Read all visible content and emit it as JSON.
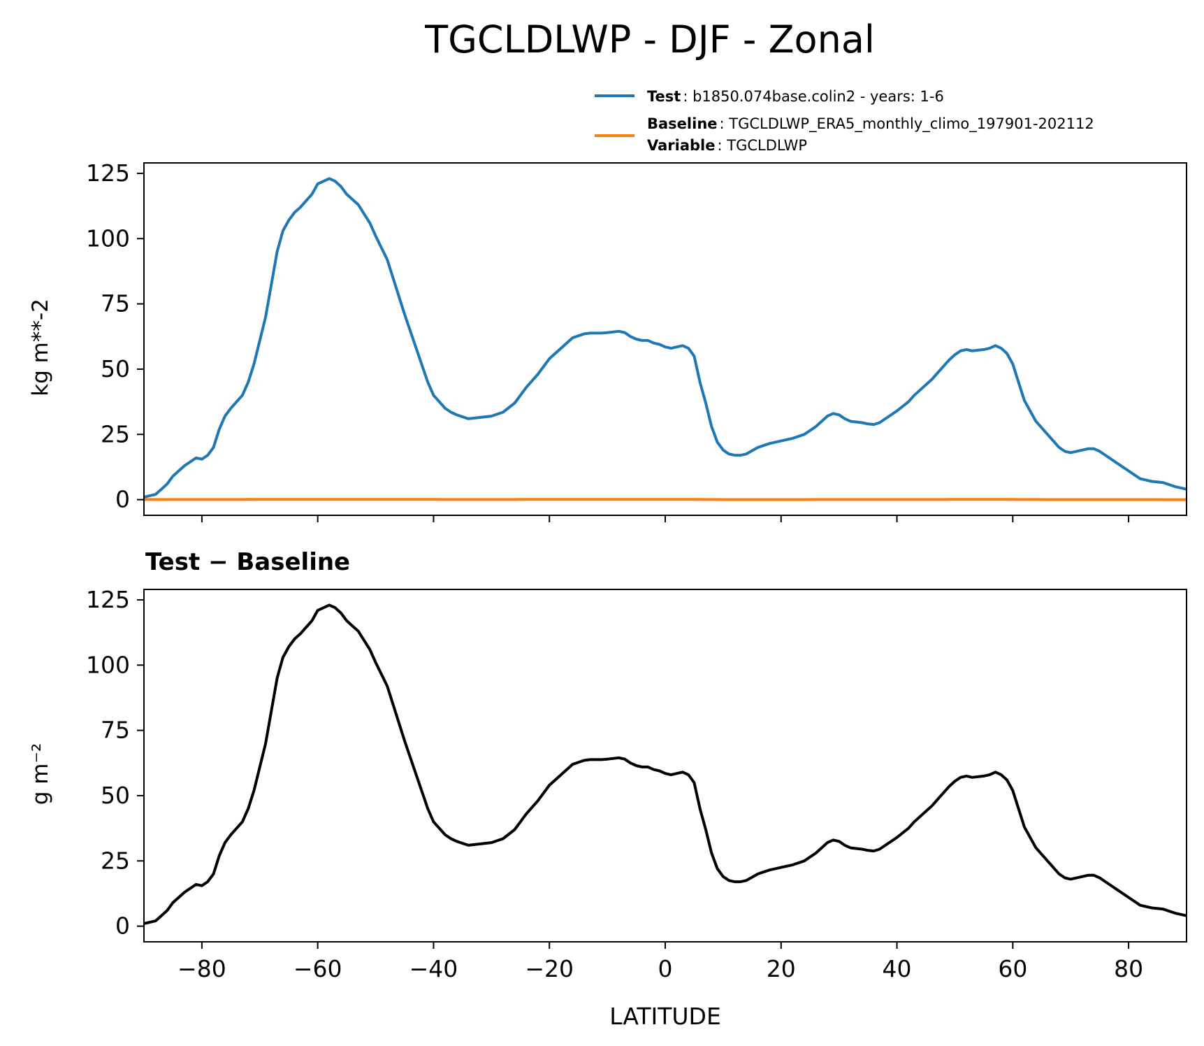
{
  "figure": {
    "title": "TGCLDLWP - DJF - Zonal",
    "colors": {
      "test": "#1f77b4",
      "baseline": "#ff7f0e",
      "difference": "#000000"
    }
  },
  "legend": {
    "test_key": "Test",
    "test_value": ": b1850.074base.colin2 - years: 1-6",
    "baseline_key": "Baseline",
    "baseline_value": ": TGCLDLWP_ERA5_monthly_climo_197901-202112",
    "variable_key": "Variable",
    "variable_value": ": TGCLDLWP"
  },
  "chart_data": [
    {
      "type": "line",
      "title": "",
      "xlabel": "",
      "ylabel": "kg m**-2",
      "xlim": [
        -90,
        90
      ],
      "ylim": [
        -6,
        129
      ],
      "xticks": [
        -80,
        -60,
        -40,
        -20,
        0,
        20,
        40,
        60,
        80
      ],
      "xtick_labels_visible": false,
      "yticks": [
        0,
        25,
        50,
        75,
        100,
        125
      ],
      "ytick_labels": [
        "0",
        "25",
        "50",
        "75",
        "100",
        "125"
      ],
      "grid": false,
      "legend": "top-right",
      "x": [
        -90,
        -88,
        -87,
        -86,
        -85,
        -83,
        -81,
        -80,
        -79,
        -78,
        -77,
        -76,
        -75,
        -73,
        -72,
        -71,
        -69,
        -67,
        -66,
        -65,
        -64,
        -63,
        -61,
        -60,
        -58,
        -57,
        -56,
        -55,
        -53,
        -51,
        -50,
        -48,
        -46,
        -45,
        -43,
        -41,
        -40,
        -38,
        -37,
        -36,
        -34,
        -32,
        -30,
        -28,
        -26,
        -25,
        -24,
        -22,
        -20,
        -18,
        -16,
        -14,
        -13,
        -11,
        -10,
        -8,
        -7,
        -6,
        -5,
        -4,
        -3,
        -2,
        -1,
        0,
        1,
        2,
        3,
        4,
        5,
        6,
        7,
        8,
        9,
        10,
        11,
        12,
        13,
        14,
        16,
        18,
        20,
        22,
        24,
        26,
        27,
        28,
        29,
        30,
        31,
        32,
        34,
        35,
        36,
        37,
        38,
        40,
        42,
        43,
        44,
        45,
        46,
        47,
        48,
        49,
        50,
        51,
        52,
        53,
        55,
        56,
        57,
        58,
        59,
        60,
        61,
        62,
        64,
        66,
        68,
        69,
        70,
        72,
        73,
        74,
        75,
        76,
        78,
        80,
        82,
        84,
        86,
        88,
        89,
        90
      ],
      "series": [
        {
          "name": "Test",
          "color": "#1f77b4",
          "values": [
            1.0,
            2.0,
            4.0,
            6.0,
            9.0,
            13.0,
            16.0,
            15.5,
            17.0,
            20.0,
            27.0,
            32.0,
            35.0,
            40.0,
            45.0,
            52.0,
            70.0,
            95.0,
            103.0,
            107.0,
            110.0,
            112.0,
            117.0,
            121.0,
            123.0,
            122.0,
            120.0,
            117.0,
            113.0,
            106.0,
            101.0,
            92.0,
            78.0,
            71.0,
            58.0,
            45.0,
            40.0,
            35.0,
            33.5,
            32.5,
            31.0,
            31.5,
            32.0,
            33.5,
            37.0,
            40.0,
            43.0,
            48.0,
            54.0,
            58.0,
            62.0,
            63.5,
            63.8,
            63.8,
            64.0,
            64.5,
            64.0,
            62.5,
            61.5,
            61.0,
            61.0,
            60.0,
            59.5,
            58.5,
            58.0,
            58.5,
            59.0,
            58.0,
            55.0,
            45.0,
            37.0,
            28.0,
            22.0,
            19.0,
            17.5,
            17.0,
            17.0,
            17.5,
            20.0,
            21.5,
            22.5,
            23.5,
            25.0,
            28.0,
            30.0,
            32.0,
            33.0,
            32.5,
            31.0,
            30.0,
            29.5,
            29.0,
            28.8,
            29.5,
            31.0,
            34.0,
            37.5,
            40.0,
            42.0,
            44.0,
            46.0,
            48.5,
            51.0,
            53.5,
            55.5,
            57.0,
            57.5,
            57.0,
            57.5,
            58.0,
            59.0,
            58.0,
            56.0,
            52.0,
            45.0,
            38.0,
            30.0,
            25.0,
            20.0,
            18.5,
            18.0,
            19.0,
            19.5,
            19.5,
            18.5,
            17.0,
            14.0,
            11.0,
            8.0,
            7.0,
            6.5,
            5.0,
            4.5,
            4.0
          ]
        },
        {
          "name": "Baseline",
          "color": "#ff7f0e",
          "values": [
            0.05,
            0.05,
            0.05,
            0.05,
            0.05,
            0.05,
            0.05,
            0.05,
            0.05,
            0.05,
            0.06,
            0.06,
            0.06,
            0.06,
            0.07,
            0.07,
            0.08,
            0.1,
            0.1,
            0.1,
            0.11,
            0.11,
            0.12,
            0.12,
            0.12,
            0.12,
            0.12,
            0.12,
            0.12,
            0.11,
            0.11,
            0.1,
            0.09,
            0.09,
            0.08,
            0.07,
            0.07,
            0.06,
            0.06,
            0.06,
            0.06,
            0.06,
            0.06,
            0.06,
            0.06,
            0.07,
            0.07,
            0.07,
            0.08,
            0.08,
            0.09,
            0.09,
            0.09,
            0.09,
            0.09,
            0.09,
            0.09,
            0.09,
            0.09,
            0.09,
            0.09,
            0.09,
            0.09,
            0.09,
            0.08,
            0.08,
            0.08,
            0.08,
            0.08,
            0.07,
            0.06,
            0.05,
            0.05,
            0.04,
            0.04,
            0.04,
            0.04,
            0.04,
            0.04,
            0.04,
            0.04,
            0.04,
            0.04,
            0.05,
            0.05,
            0.05,
            0.05,
            0.05,
            0.05,
            0.05,
            0.05,
            0.05,
            0.05,
            0.05,
            0.05,
            0.05,
            0.05,
            0.06,
            0.06,
            0.06,
            0.06,
            0.06,
            0.06,
            0.07,
            0.07,
            0.07,
            0.07,
            0.07,
            0.07,
            0.07,
            0.07,
            0.07,
            0.07,
            0.07,
            0.06,
            0.06,
            0.05,
            0.04,
            0.04,
            0.04,
            0.04,
            0.04,
            0.04,
            0.04,
            0.04,
            0.03,
            0.03,
            0.02,
            0.02,
            0.02,
            0.01,
            0.01,
            0.01,
            0.01
          ]
        }
      ]
    },
    {
      "type": "line",
      "title": "Test − Baseline",
      "xlabel": "LATITUDE",
      "ylabel": "g m⁻²",
      "xlim": [
        -90,
        90
      ],
      "ylim": [
        -6,
        129
      ],
      "xticks": [
        -80,
        -60,
        -40,
        -20,
        0,
        20,
        40,
        60,
        80
      ],
      "xtick_labels": [
        "−80",
        "−60",
        "−40",
        "−20",
        "0",
        "20",
        "40",
        "60",
        "80"
      ],
      "yticks": [
        0,
        25,
        50,
        75,
        100,
        125
      ],
      "ytick_labels": [
        "0",
        "25",
        "50",
        "75",
        "100",
        "125"
      ],
      "grid": false,
      "x": [
        -90,
        -88,
        -87,
        -86,
        -85,
        -83,
        -81,
        -80,
        -79,
        -78,
        -77,
        -76,
        -75,
        -73,
        -72,
        -71,
        -69,
        -67,
        -66,
        -65,
        -64,
        -63,
        -61,
        -60,
        -58,
        -57,
        -56,
        -55,
        -53,
        -51,
        -50,
        -48,
        -46,
        -45,
        -43,
        -41,
        -40,
        -38,
        -37,
        -36,
        -34,
        -32,
        -30,
        -28,
        -26,
        -25,
        -24,
        -22,
        -20,
        -18,
        -16,
        -14,
        -13,
        -11,
        -10,
        -8,
        -7,
        -6,
        -5,
        -4,
        -3,
        -2,
        -1,
        0,
        1,
        2,
        3,
        4,
        5,
        6,
        7,
        8,
        9,
        10,
        11,
        12,
        13,
        14,
        16,
        18,
        20,
        22,
        24,
        26,
        27,
        28,
        29,
        30,
        31,
        32,
        34,
        35,
        36,
        37,
        38,
        40,
        42,
        43,
        44,
        45,
        46,
        47,
        48,
        49,
        50,
        51,
        52,
        53,
        55,
        56,
        57,
        58,
        59,
        60,
        61,
        62,
        64,
        66,
        68,
        69,
        70,
        72,
        73,
        74,
        75,
        76,
        78,
        80,
        82,
        84,
        86,
        88,
        89,
        90
      ],
      "series": [
        {
          "color": "#000000",
          "values": [
            1.0,
            2.0,
            4.0,
            6.0,
            9.0,
            13.0,
            16.0,
            15.5,
            17.0,
            20.0,
            27.0,
            32.0,
            35.0,
            40.0,
            45.0,
            52.0,
            70.0,
            95.0,
            103.0,
            107.0,
            110.0,
            112.0,
            117.0,
            121.0,
            123.0,
            122.0,
            120.0,
            117.0,
            113.0,
            106.0,
            101.0,
            92.0,
            78.0,
            71.0,
            58.0,
            45.0,
            40.0,
            35.0,
            33.5,
            32.5,
            31.0,
            31.5,
            32.0,
            33.5,
            37.0,
            40.0,
            43.0,
            48.0,
            54.0,
            58.0,
            62.0,
            63.5,
            63.8,
            63.8,
            64.0,
            64.5,
            64.0,
            62.5,
            61.5,
            61.0,
            61.0,
            60.0,
            59.5,
            58.5,
            58.0,
            58.5,
            59.0,
            58.0,
            55.0,
            45.0,
            37.0,
            28.0,
            22.0,
            19.0,
            17.5,
            17.0,
            17.0,
            17.5,
            20.0,
            21.5,
            22.5,
            23.5,
            25.0,
            28.0,
            30.0,
            32.0,
            33.0,
            32.5,
            31.0,
            30.0,
            29.5,
            29.0,
            28.8,
            29.5,
            31.0,
            34.0,
            37.5,
            40.0,
            42.0,
            44.0,
            46.0,
            48.5,
            51.0,
            53.5,
            55.5,
            57.0,
            57.5,
            57.0,
            57.5,
            58.0,
            59.0,
            58.0,
            56.0,
            52.0,
            45.0,
            38.0,
            30.0,
            25.0,
            20.0,
            18.5,
            18.0,
            19.0,
            19.5,
            19.5,
            18.5,
            17.0,
            14.0,
            11.0,
            8.0,
            7.0,
            6.5,
            5.0,
            4.5,
            4.0
          ]
        }
      ]
    }
  ]
}
